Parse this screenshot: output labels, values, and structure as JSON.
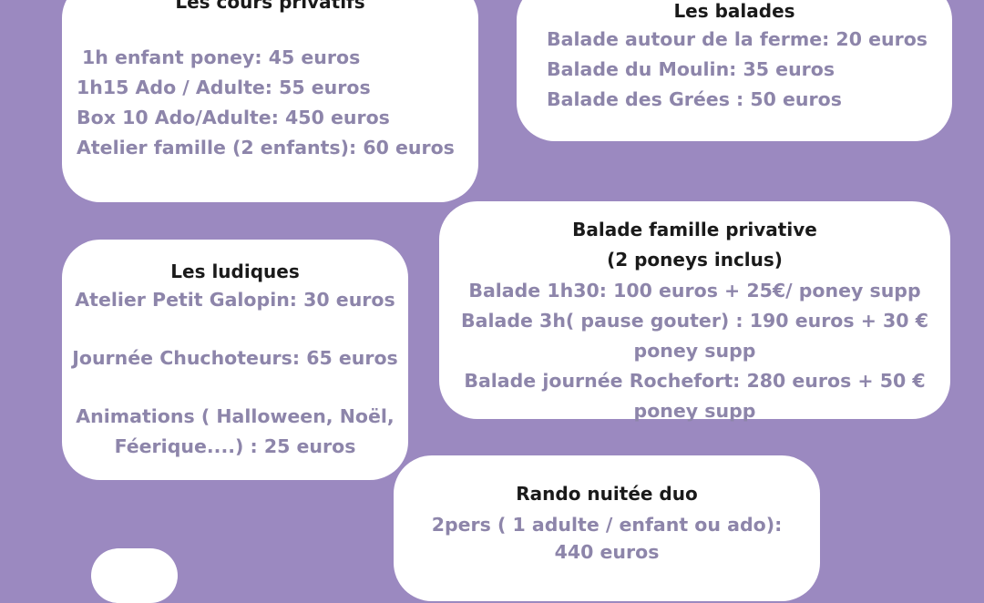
{
  "cours": {
    "title": "Les cours privatifs",
    "items": [
      "1h enfant poney:  45 euros",
      "1h15 Ado / Adulte: 55 euros",
      "Box 10 Ado/Adulte: 450 euros",
      "Atelier famille (2 enfants): 60 euros"
    ]
  },
  "balades": {
    "title": "Les balades",
    "items": [
      "Balade autour de la ferme: 20 euros",
      "Balade du Moulin: 35 euros",
      "Balade des Grées : 50 euros"
    ]
  },
  "ludiques": {
    "title": "Les ludiques",
    "items": [
      "Atelier Petit Galopin: 30 euros",
      "Journée Chuchoteurs: 65 euros",
      "Animations ( Halloween, Noël,",
      "Féerique....) : 25 euros"
    ]
  },
  "famille": {
    "title": "Balade famille privative",
    "subtitle": "(2 poneys inclus)",
    "items": [
      "Balade 1h30: 100 euros + 25€/ poney supp",
      "Balade 3h( pause gouter) : 190 euros + 30 €",
      "poney supp",
      "Balade journée Rochefort: 280 euros + 50 €",
      "poney supp"
    ]
  },
  "rando": {
    "title": "Rando nuitée duo",
    "items": [
      "2pers ( 1 adulte / enfant ou ado):",
      "440 euros"
    ]
  },
  "colors": {
    "background": "#9b89c0",
    "card": "#ffffff",
    "price_text": "#8d85aa",
    "title_text": "#1a1a1a"
  }
}
